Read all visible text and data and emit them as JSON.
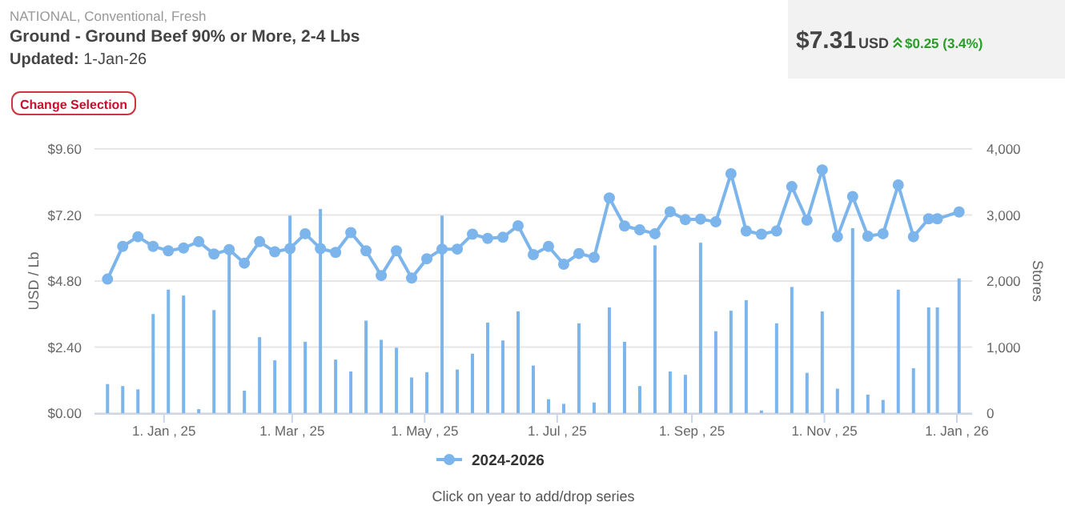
{
  "chart_data": {
    "type": "line",
    "title": "Ground - Ground Beef 90% or More, 2-4 Lbs",
    "subtitle": "NATIONAL, Conventional, Fresh",
    "annotations": [
      "Updated: 1-Jan-26",
      "$7.31",
      "USD",
      "$0.25 (3.4%)",
      "Change Selection",
      "Click on year to add/drop series"
    ],
    "ylabel": "USD / Lb",
    "y2label": "Stores",
    "x": [
      "2024-12-06",
      "2024-12-13",
      "2024-12-20",
      "2024-12-27",
      "2025-01-03",
      "2025-01-10",
      "2025-01-17",
      "2025-01-24",
      "2025-01-31",
      "2025-02-07",
      "2025-02-14",
      "2025-02-21",
      "2025-02-28",
      "2025-03-07",
      "2025-03-14",
      "2025-03-21",
      "2025-03-28",
      "2025-04-04",
      "2025-04-11",
      "2025-04-18",
      "2025-04-25",
      "2025-05-02",
      "2025-05-09",
      "2025-05-16",
      "2025-05-23",
      "2025-05-30",
      "2025-06-06",
      "2025-06-13",
      "2025-06-20",
      "2025-06-27",
      "2025-07-04",
      "2025-07-11",
      "2025-07-18",
      "2025-07-25",
      "2025-08-01",
      "2025-08-08",
      "2025-08-15",
      "2025-08-22",
      "2025-08-29",
      "2025-09-05",
      "2025-09-12",
      "2025-09-19",
      "2025-09-26",
      "2025-10-03",
      "2025-10-10",
      "2025-10-17",
      "2025-10-24",
      "2025-10-31",
      "2025-11-07",
      "2025-11-14",
      "2025-11-21",
      "2025-11-28",
      "2025-12-05",
      "2025-12-12",
      "2025-12-19",
      "2025-12-23",
      "2026-01-02"
    ],
    "series": [
      {
        "type": "bar",
        "axis": "y2",
        "color": "#7cb5ec",
        "values": [
          440,
          410,
          360,
          1500,
          1870,
          1780,
          60,
          1560,
          2470,
          340,
          1150,
          800,
          2990,
          1080,
          3090,
          810,
          630,
          1400,
          1110,
          990,
          540,
          620,
          2990,
          660,
          900,
          1370,
          1100,
          1540,
          720,
          210,
          140,
          1360,
          160,
          1600,
          1080,
          410,
          2540,
          630,
          580,
          2580,
          1240,
          1550,
          1710,
          40,
          1360,
          1910,
          610,
          1540,
          370,
          2800,
          280,
          200,
          1870,
          680,
          1600,
          1600,
          2040
        ]
      },
      {
        "name": "2024-2026",
        "color": "#7cb5ec",
        "values": [
          4.87,
          6.06,
          6.41,
          6.06,
          5.9,
          6.0,
          6.23,
          5.78,
          5.94,
          5.45,
          6.23,
          5.86,
          5.98,
          6.52,
          5.98,
          5.84,
          6.56,
          5.9,
          5.0,
          5.9,
          4.91,
          5.61,
          5.96,
          5.96,
          6.5,
          6.35,
          6.39,
          6.81,
          5.76,
          6.06,
          5.41,
          5.8,
          5.66,
          7.82,
          6.8,
          6.66,
          6.52,
          7.32,
          7.03,
          7.05,
          6.95,
          8.7,
          6.62,
          6.5,
          6.62,
          8.23,
          7.01,
          8.84,
          6.41,
          7.87,
          6.43,
          6.52,
          8.29,
          6.41,
          7.06,
          7.06,
          7.31
        ]
      }
    ],
    "xlim": [
      "2024-11-30",
      "2026-01-08"
    ],
    "xticks": [
      {
        "value": "2025-01-01",
        "label": "1. Jan , 25"
      },
      {
        "value": "2025-03-01",
        "label": "1. Mar , 25"
      },
      {
        "value": "2025-05-01",
        "label": "1. May , 25"
      },
      {
        "value": "2025-07-01",
        "label": "1. Jul , 25"
      },
      {
        "value": "2025-09-01",
        "label": "1. Sep , 25"
      },
      {
        "value": "2025-11-01",
        "label": "1. Nov , 25"
      },
      {
        "value": "2026-01-01",
        "label": "1. Jan , 26"
      }
    ],
    "ylim": [
      0,
      9.6
    ],
    "yticks": [
      {
        "value": 0,
        "label": "$0.00"
      },
      {
        "value": 2.4,
        "label": "$2.40"
      },
      {
        "value": 4.8,
        "label": "$4.80"
      },
      {
        "value": 7.2,
        "label": "$7.20"
      },
      {
        "value": 9.6,
        "label": "$9.60"
      }
    ],
    "y2lim": [
      0,
      4000
    ],
    "y2ticks": [
      0,
      {
        "value": 1000,
        "label": "1,000"
      },
      {
        "value": 2000,
        "label": "2,000"
      },
      {
        "value": 3000,
        "label": "3,000"
      },
      {
        "value": 4000,
        "label": "4,000"
      }
    ],
    "grid": "y",
    "legend": "bottom",
    "marker": "circle"
  }
}
